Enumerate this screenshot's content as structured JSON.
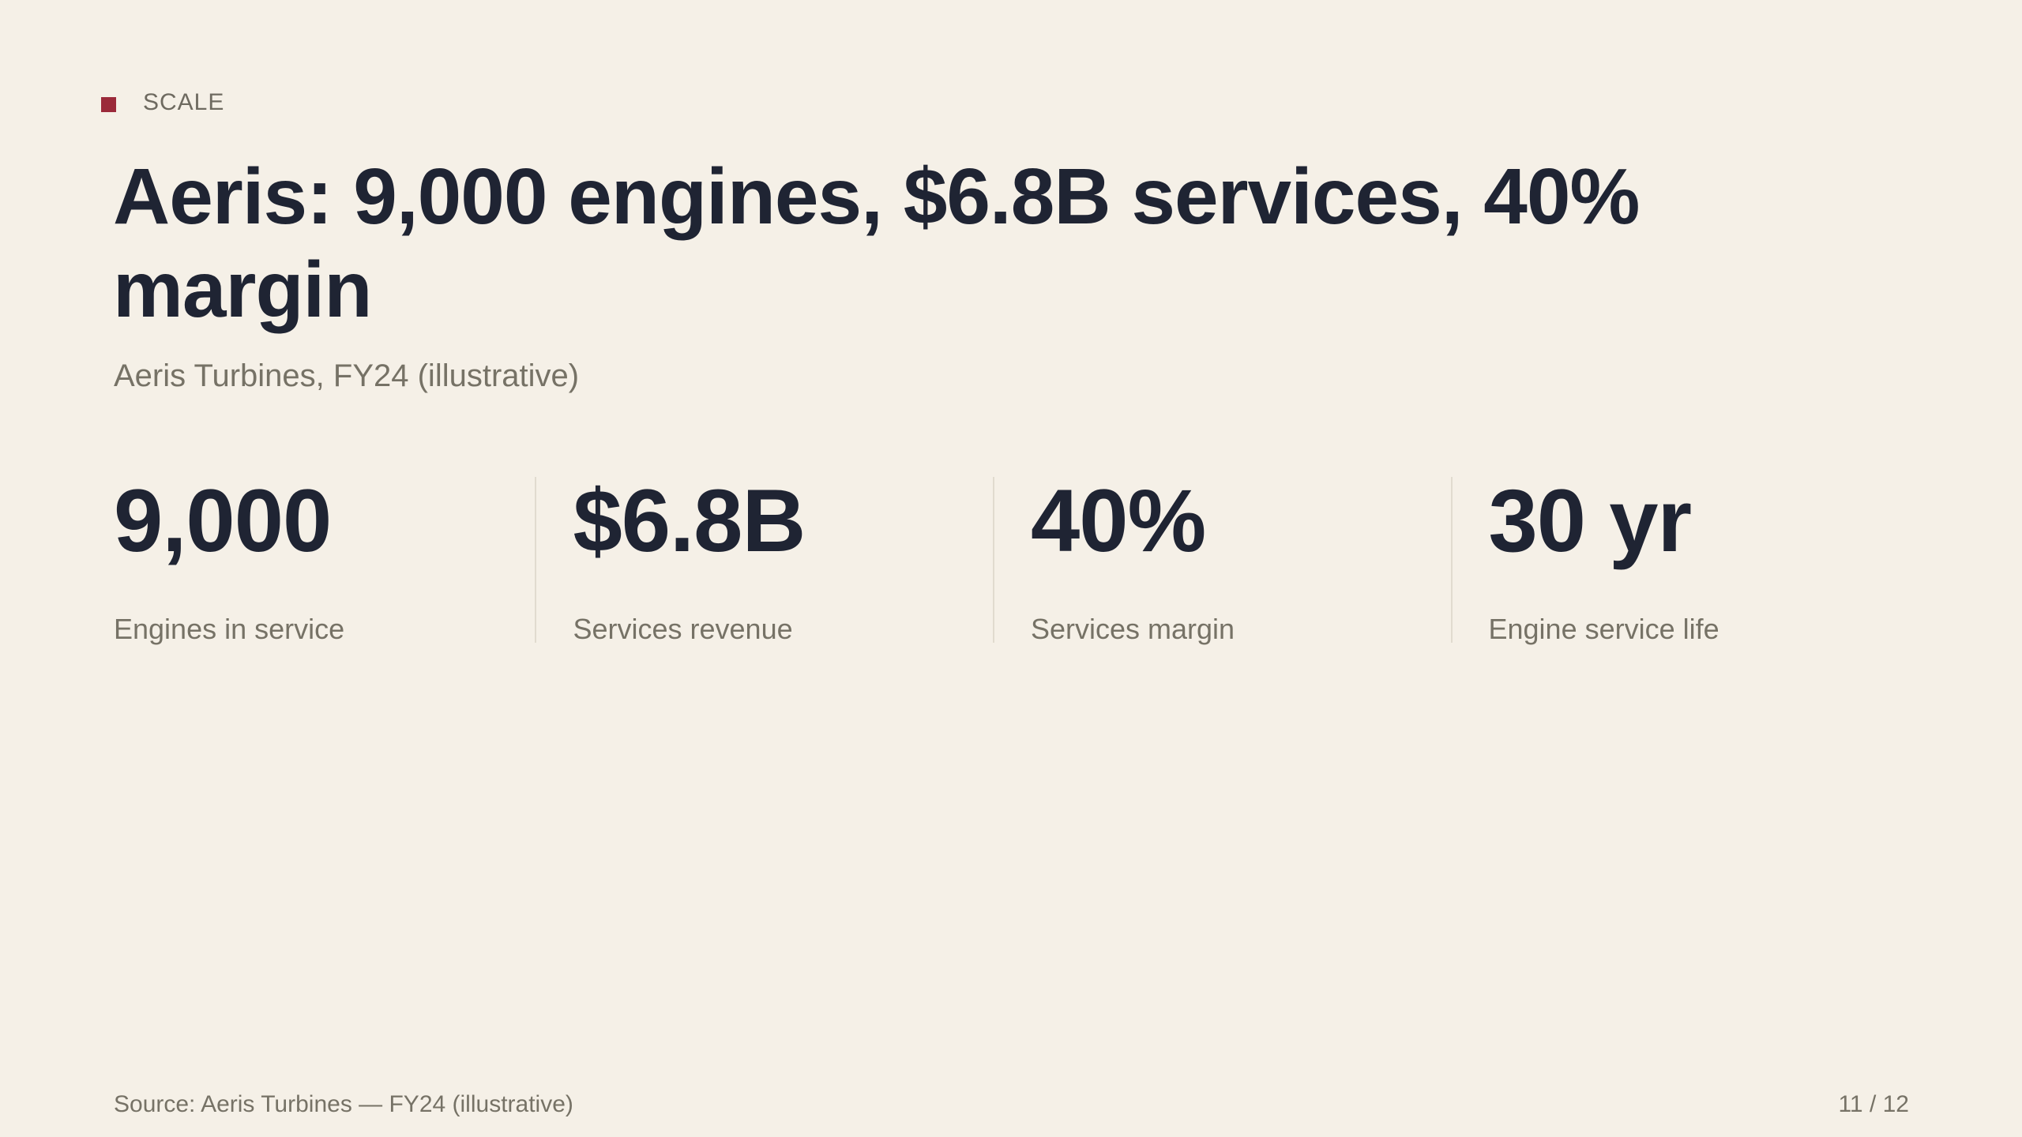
{
  "eyebrow": {
    "label": "SCALE",
    "accent_color": "#9b2a3a"
  },
  "title": "Aeris: 9,000 engines, $6.8B services, 40% margin",
  "subtitle": "Aeris Turbines, FY24 (illustrative)",
  "metrics": [
    {
      "value": "9,000",
      "label": "Engines in service"
    },
    {
      "value": "$6.8B",
      "label": "Services revenue"
    },
    {
      "value": "40%",
      "label": "Services margin"
    },
    {
      "value": "30 yr",
      "label": "Engine service life"
    }
  ],
  "footer": {
    "source": "Source: Aeris Turbines — FY24 (illustrative)",
    "page": "11 / 12"
  }
}
